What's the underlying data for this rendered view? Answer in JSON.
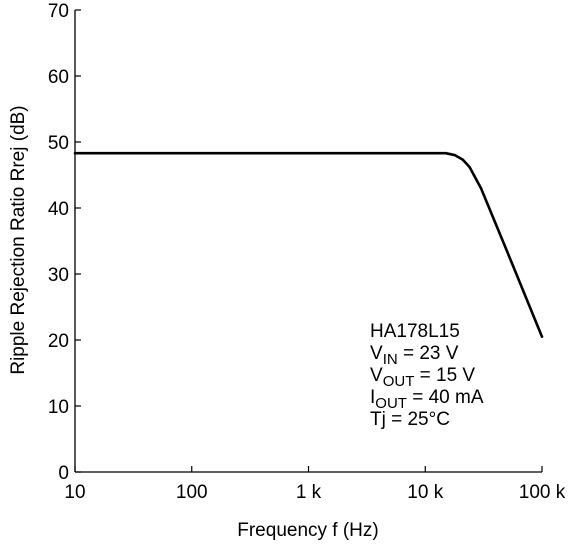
{
  "chart_data": {
    "type": "line",
    "title": "",
    "xlabel": "Frequency  f  (Hz)",
    "ylabel": "Ripple Rejection Ratio  Rrej  (dB)",
    "x_scale": "log",
    "xlim": [
      10,
      100000
    ],
    "ylim": [
      0,
      70
    ],
    "x_ticks": [
      10,
      100,
      1000,
      10000,
      100000
    ],
    "x_tick_labels": [
      "10",
      "100",
      "1 k",
      "10 k",
      "100 k"
    ],
    "y_ticks": [
      0,
      10,
      20,
      30,
      40,
      50,
      60,
      70
    ],
    "y_tick_labels": [
      "0",
      "10",
      "20",
      "30",
      "40",
      "50",
      "60",
      "70"
    ],
    "grid": false,
    "series": [
      {
        "x": [
          10,
          100,
          1000,
          10000,
          15000,
          18000,
          21000,
          24000,
          27000,
          30000,
          50000,
          100000
        ],
        "y": [
          48.3,
          48.3,
          48.3,
          48.3,
          48.3,
          48.0,
          47.3,
          46.2,
          44.5,
          43.0,
          33.5,
          20.5
        ]
      }
    ],
    "annotation": {
      "lines": [
        {
          "text": "HA178L15"
        },
        {
          "text": "V",
          "sub": "IN",
          "rest": " = 23 V"
        },
        {
          "text": "V",
          "sub": "OUT",
          "rest": " = 15 V"
        },
        {
          "text": "I",
          "sub": "OUT",
          "rest": " = 40 mA"
        },
        {
          "text": "Tj = 25°C"
        }
      ]
    }
  }
}
